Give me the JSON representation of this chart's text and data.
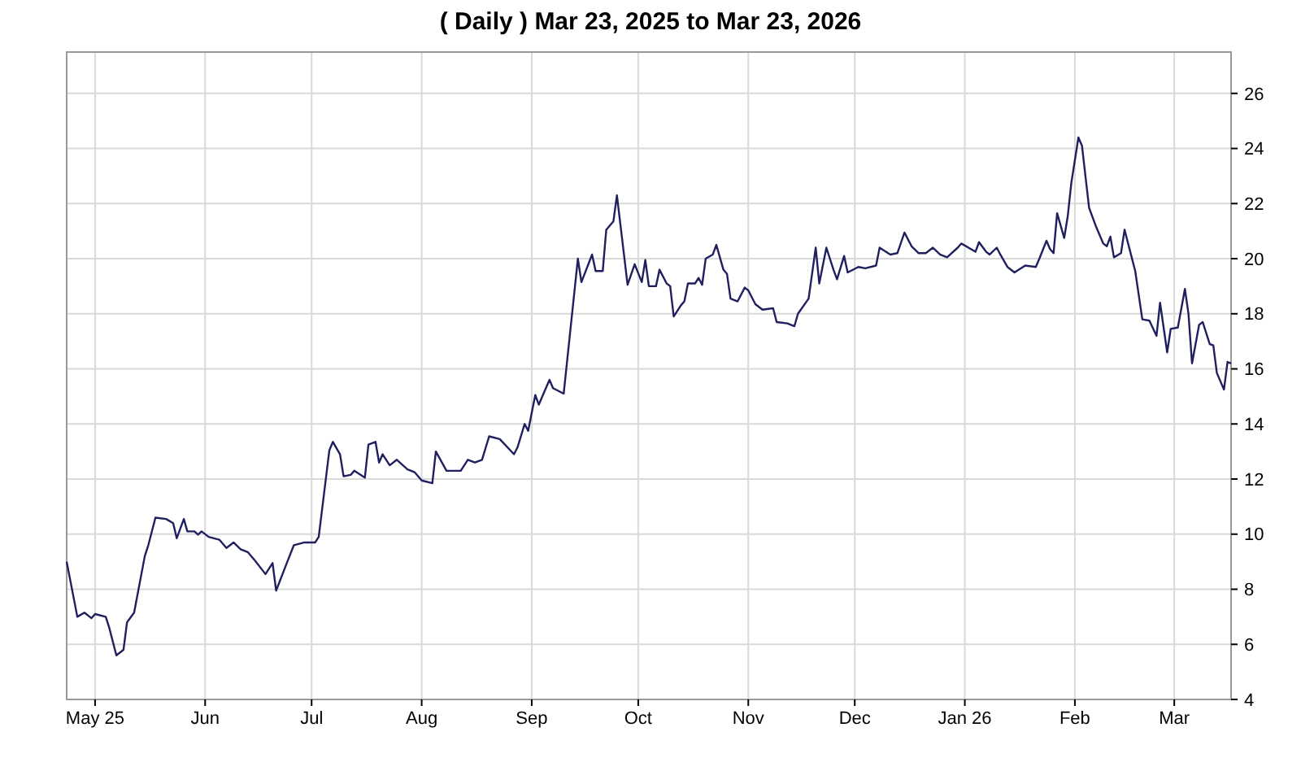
{
  "chart_data": {
    "type": "line",
    "title": "( Daily ) Mar 23, 2025 to Mar 23, 2026",
    "color": "#202060",
    "grid": true,
    "xlim": [
      "2025-04-23",
      "2026-03-17"
    ],
    "ylim": [
      4,
      27.5
    ],
    "xticks": [
      {
        "value": "2025-05-01",
        "label": "May 25"
      },
      {
        "value": "2025-06-01",
        "label": "Jun"
      },
      {
        "value": "2025-07-01",
        "label": "Jul"
      },
      {
        "value": "2025-08-01",
        "label": "Aug"
      },
      {
        "value": "2025-09-01",
        "label": "Sep"
      },
      {
        "value": "2025-10-01",
        "label": "Oct"
      },
      {
        "value": "2025-11-01",
        "label": "Nov"
      },
      {
        "value": "2025-12-01",
        "label": "Dec"
      },
      {
        "value": "2026-01-01",
        "label": "Jan 26"
      },
      {
        "value": "2026-02-01",
        "label": "Feb"
      },
      {
        "value": "2026-03-01",
        "label": "Mar"
      }
    ],
    "yticks": [
      4,
      6,
      8,
      10,
      12,
      14,
      16,
      18,
      20,
      22,
      24,
      26
    ],
    "x": [
      "2025-04-23",
      "2025-04-26",
      "2025-04-28",
      "2025-04-30",
      "2025-05-01",
      "2025-05-04",
      "2025-05-05",
      "2025-05-07",
      "2025-05-09",
      "2025-05-10",
      "2025-05-12",
      "2025-05-15",
      "2025-05-16",
      "2025-05-18",
      "2025-05-21",
      "2025-05-23",
      "2025-05-24",
      "2025-05-26",
      "2025-05-27",
      "2025-05-29",
      "2025-05-30",
      "2025-05-31",
      "2025-06-02",
      "2025-06-05",
      "2025-06-07",
      "2025-06-09",
      "2025-06-11",
      "2025-06-13",
      "2025-06-15",
      "2025-06-18",
      "2025-06-20",
      "2025-06-21",
      "2025-06-24",
      "2025-06-26",
      "2025-06-29",
      "2025-07-02",
      "2025-07-03",
      "2025-07-06",
      "2025-07-07",
      "2025-07-09",
      "2025-07-10",
      "2025-07-12",
      "2025-07-13",
      "2025-07-16",
      "2025-07-17",
      "2025-07-19",
      "2025-07-20",
      "2025-07-21",
      "2025-07-23",
      "2025-07-25",
      "2025-07-28",
      "2025-07-30",
      "2025-08-01",
      "2025-08-04",
      "2025-08-05",
      "2025-08-08",
      "2025-08-12",
      "2025-08-14",
      "2025-08-16",
      "2025-08-18",
      "2025-08-20",
      "2025-08-23",
      "2025-08-27",
      "2025-08-28",
      "2025-08-30",
      "2025-08-31",
      "2025-09-02",
      "2025-09-03",
      "2025-09-06",
      "2025-09-07",
      "2025-09-10",
      "2025-09-14",
      "2025-09-15",
      "2025-09-18",
      "2025-09-19",
      "2025-09-21",
      "2025-09-22",
      "2025-09-24",
      "2025-09-25",
      "2025-09-28",
      "2025-09-30",
      "2025-10-02",
      "2025-10-03",
      "2025-10-04",
      "2025-10-06",
      "2025-10-07",
      "2025-10-09",
      "2025-10-10",
      "2025-10-11",
      "2025-10-13",
      "2025-10-14",
      "2025-10-15",
      "2025-10-17",
      "2025-10-18",
      "2025-10-19",
      "2025-10-20",
      "2025-10-22",
      "2025-10-23",
      "2025-10-25",
      "2025-10-26",
      "2025-10-27",
      "2025-10-29",
      "2025-10-31",
      "2025-11-01",
      "2025-11-03",
      "2025-11-05",
      "2025-11-08",
      "2025-11-09",
      "2025-11-12",
      "2025-11-14",
      "2025-11-15",
      "2025-11-18",
      "2025-11-20",
      "2025-11-21",
      "2025-11-23",
      "2025-11-25",
      "2025-11-26",
      "2025-11-28",
      "2025-11-29",
      "2025-12-02",
      "2025-12-04",
      "2025-12-07",
      "2025-12-08",
      "2025-12-11",
      "2025-12-13",
      "2025-12-15",
      "2025-12-17",
      "2025-12-19",
      "2025-12-21",
      "2025-12-23",
      "2025-12-25",
      "2025-12-27",
      "2025-12-30",
      "2025-12-31",
      "2026-01-04",
      "2026-01-05",
      "2026-01-07",
      "2026-01-08",
      "2026-01-10",
      "2026-01-11",
      "2026-01-13",
      "2026-01-15",
      "2026-01-18",
      "2026-01-21",
      "2026-01-22",
      "2026-01-24",
      "2026-01-25",
      "2026-01-26",
      "2026-01-27",
      "2026-01-29",
      "2026-01-30",
      "2026-01-31",
      "2026-02-02",
      "2026-02-03",
      "2026-02-05",
      "2026-02-07",
      "2026-02-09",
      "2026-02-10",
      "2026-02-11",
      "2026-02-12",
      "2026-02-14",
      "2026-02-15",
      "2026-02-17",
      "2026-02-18",
      "2026-02-20",
      "2026-02-22",
      "2026-02-24",
      "2026-02-25",
      "2026-02-27",
      "2026-02-28",
      "2026-03-02",
      "2026-03-04",
      "2026-03-05",
      "2026-03-06",
      "2026-03-08",
      "2026-03-09",
      "2026-03-11",
      "2026-03-12",
      "2026-03-13",
      "2026-03-15",
      "2026-03-16",
      "2026-03-17"
    ],
    "values": [
      9.0,
      7.0,
      7.15,
      6.95,
      7.1,
      7.0,
      6.6,
      5.6,
      5.8,
      6.8,
      7.15,
      9.2,
      9.6,
      10.6,
      10.55,
      10.4,
      9.85,
      10.55,
      10.1,
      10.1,
      9.98,
      10.1,
      9.9,
      9.8,
      9.5,
      9.7,
      9.45,
      9.35,
      9.05,
      8.55,
      8.95,
      7.95,
      8.95,
      9.6,
      9.7,
      9.7,
      9.9,
      13.05,
      13.35,
      12.9,
      12.1,
      12.15,
      12.3,
      12.05,
      13.25,
      13.35,
      12.6,
      12.9,
      12.5,
      12.7,
      12.35,
      12.25,
      11.95,
      11.85,
      13.0,
      12.3,
      12.3,
      12.7,
      12.6,
      12.7,
      13.55,
      13.45,
      12.9,
      13.15,
      14.0,
      13.75,
      15.05,
      14.7,
      15.6,
      15.3,
      15.1,
      20.0,
      19.15,
      20.15,
      19.55,
      19.55,
      21.05,
      21.35,
      22.3,
      19.05,
      19.8,
      19.15,
      19.95,
      19.0,
      19.0,
      19.6,
      19.1,
      19.0,
      17.9,
      18.3,
      18.45,
      19.1,
      19.1,
      19.3,
      19.05,
      20.0,
      20.15,
      20.5,
      19.6,
      19.45,
      18.55,
      18.45,
      18.95,
      18.85,
      18.35,
      18.15,
      18.2,
      17.7,
      17.65,
      17.55,
      18.0,
      18.55,
      20.4,
      19.1,
      20.4,
      19.6,
      19.25,
      20.1,
      19.5,
      19.7,
      19.65,
      19.75,
      20.4,
      20.15,
      20.2,
      20.95,
      20.45,
      20.2,
      20.2,
      20.4,
      20.15,
      20.05,
      20.4,
      20.55,
      20.25,
      20.6,
      20.25,
      20.15,
      20.4,
      20.15,
      19.7,
      19.5,
      19.75,
      19.7,
      20.0,
      20.65,
      20.35,
      20.2,
      21.65,
      20.75,
      21.55,
      22.75,
      24.4,
      24.1,
      21.85,
      21.15,
      20.55,
      20.45,
      20.8,
      20.05,
      20.2,
      21.05,
      20.05,
      19.55,
      17.8,
      17.75,
      17.2,
      18.4,
      16.6,
      17.45,
      17.5,
      18.9,
      18.0,
      16.2,
      17.6,
      17.7,
      16.9,
      16.85,
      15.85,
      15.25,
      16.25,
      16.2
    ]
  }
}
